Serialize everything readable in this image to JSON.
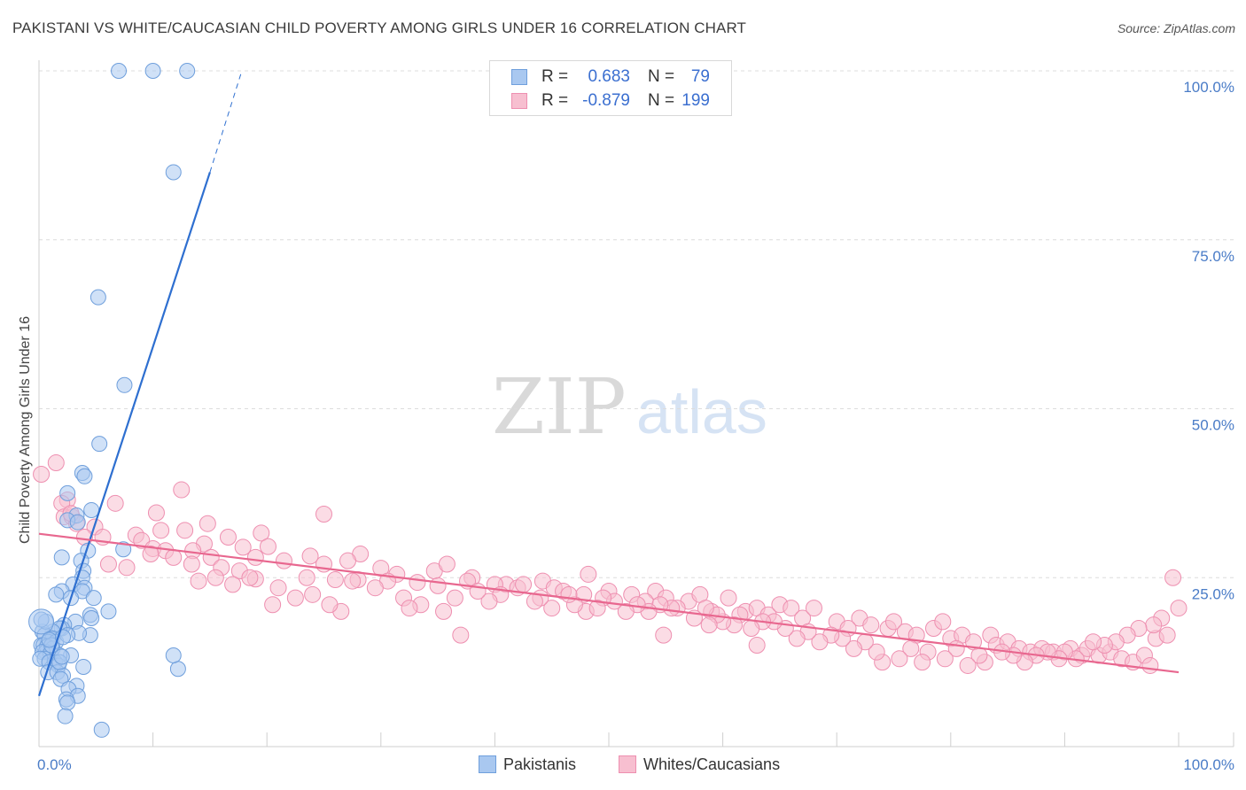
{
  "title": "PAKISTANI VS WHITE/CAUCASIAN CHILD POVERTY AMONG GIRLS UNDER 16 CORRELATION CHART",
  "source": "Source: ZipAtlas.com",
  "watermark": {
    "zip": "ZIP",
    "atlas": "atlas"
  },
  "colors": {
    "pakistani_fill": "#a9c8f0",
    "pakistani_stroke": "#6f9fdc",
    "pakistani_line": "#2e6fd0",
    "white_fill": "#f7bfd0",
    "white_stroke": "#ee8fb0",
    "white_line": "#e8678f",
    "tick_text": "#4a7cc7",
    "grid": "#dcdcdc"
  },
  "legend_top": {
    "rows": [
      {
        "r_label": "R =",
        "r_value": "0.683",
        "n_label": "N =",
        "n_value": "79"
      },
      {
        "r_label": "R =",
        "r_value": "-0.879",
        "n_label": "N =",
        "n_value": "199"
      }
    ]
  },
  "legend_bottom": [
    "Pakistanis",
    "Whites/Caucasians"
  ],
  "chart_data": {
    "type": "scatter",
    "title": "PAKISTANI VS WHITE/CAUCASIAN CHILD POVERTY AMONG GIRLS UNDER 16 CORRELATION CHART",
    "xlabel": "",
    "ylabel": "Child Poverty Among Girls Under 16",
    "xlim": [
      0,
      100
    ],
    "ylim": [
      0,
      100
    ],
    "x_tick_labels": [
      {
        "value": 0,
        "label": "0.0%"
      },
      {
        "value": 100,
        "label": "100.0%"
      }
    ],
    "y_tick_labels": [
      {
        "value": 25,
        "label": "25.0%"
      },
      {
        "value": 50,
        "label": "50.0%"
      },
      {
        "value": 75,
        "label": "75.0%"
      },
      {
        "value": 100,
        "label": "100.0%"
      }
    ],
    "grid": true,
    "legend_placement": "top-center",
    "series": [
      {
        "name": "Pakistanis",
        "trend": {
          "x0": 0.0,
          "y0": 7.5,
          "x1": 15.0,
          "y1": 85.0,
          "dashed_to_x": 17.8,
          "dashed_to_y": 100.0
        },
        "points": [
          [
            7.0,
            100
          ],
          [
            10.0,
            100
          ],
          [
            13.0,
            100
          ],
          [
            11.8,
            85
          ],
          [
            5.2,
            66.5
          ],
          [
            7.5,
            53.5
          ],
          [
            5.3,
            44.8
          ],
          [
            3.8,
            40.5
          ],
          [
            4.0,
            40
          ],
          [
            2.5,
            37.5
          ],
          [
            4.6,
            35
          ],
          [
            3.3,
            34.2
          ],
          [
            2.5,
            33.5
          ],
          [
            3.4,
            33.2
          ],
          [
            7.4,
            29.2
          ],
          [
            4.3,
            29
          ],
          [
            2.0,
            28
          ],
          [
            3.7,
            27.5
          ],
          [
            3.9,
            26
          ],
          [
            3.8,
            25
          ],
          [
            3.0,
            24
          ],
          [
            4.0,
            23.5
          ],
          [
            3.8,
            23
          ],
          [
            2.0,
            23
          ],
          [
            1.5,
            22.5
          ],
          [
            2.8,
            22
          ],
          [
            4.8,
            22
          ],
          [
            6.1,
            20
          ],
          [
            4.5,
            19.5
          ],
          [
            4.6,
            19
          ],
          [
            3.2,
            18.5
          ],
          [
            2.2,
            18
          ],
          [
            2.0,
            17.5
          ],
          [
            1.8,
            17.5
          ],
          [
            1.2,
            17
          ],
          [
            0.3,
            17
          ],
          [
            0.5,
            16.5
          ],
          [
            1.0,
            16
          ],
          [
            1.2,
            16
          ],
          [
            0.8,
            15.5
          ],
          [
            1.5,
            15.5
          ],
          [
            0.2,
            15
          ],
          [
            0.4,
            15
          ],
          [
            0.7,
            14.8
          ],
          [
            1.2,
            14.5
          ],
          [
            0.6,
            14
          ],
          [
            0.3,
            14
          ],
          [
            1.0,
            13.8
          ],
          [
            2.8,
            13.5
          ],
          [
            1.8,
            13.5
          ],
          [
            0.5,
            13
          ],
          [
            0.1,
            13
          ],
          [
            1.4,
            12.5
          ],
          [
            0.9,
            12.5
          ],
          [
            1.7,
            12
          ],
          [
            3.9,
            11.8
          ],
          [
            12.2,
            11.5
          ],
          [
            0.8,
            11
          ],
          [
            1.6,
            11
          ],
          [
            2.1,
            10.5
          ],
          [
            1.9,
            10
          ],
          [
            3.3,
            9
          ],
          [
            2.6,
            8.5
          ],
          [
            3.4,
            7.5
          ],
          [
            2.4,
            7
          ],
          [
            2.5,
            6.5
          ],
          [
            2.3,
            4.5
          ],
          [
            5.5,
            2.5
          ],
          [
            4.5,
            16.5
          ],
          [
            3.5,
            16.8
          ],
          [
            2.5,
            16.5
          ],
          [
            0.6,
            18.5
          ],
          [
            0.2,
            18.8
          ],
          [
            1.8,
            12.5
          ],
          [
            2.0,
            13.3
          ],
          [
            1.1,
            15
          ],
          [
            0.9,
            15.8
          ],
          [
            2.1,
            16.2
          ],
          [
            11.8,
            13.5
          ]
        ]
      },
      {
        "name": "Whites/Caucasians",
        "trend": {
          "x0": 0.0,
          "y0": 31.5,
          "x1": 100.0,
          "y1": 11.0
        },
        "points": [
          [
            1.5,
            42
          ],
          [
            0.2,
            40.3
          ],
          [
            12.5,
            38
          ],
          [
            2.5,
            36.5
          ],
          [
            2.0,
            36
          ],
          [
            6.7,
            36
          ],
          [
            25.0,
            34.4
          ],
          [
            10.3,
            34.6
          ],
          [
            2.2,
            34
          ],
          [
            2.9,
            34
          ],
          [
            14.8,
            33
          ],
          [
            3.3,
            33
          ],
          [
            4.9,
            32.5
          ],
          [
            10.7,
            32
          ],
          [
            12.8,
            32
          ],
          [
            19.5,
            31.6
          ],
          [
            8.5,
            31.3
          ],
          [
            4.0,
            31
          ],
          [
            5.6,
            31
          ],
          [
            9.0,
            30.5
          ],
          [
            16.6,
            31
          ],
          [
            17.9,
            29.5
          ],
          [
            14.5,
            30
          ],
          [
            20.1,
            29.6
          ],
          [
            10.0,
            29.3
          ],
          [
            11.1,
            29
          ],
          [
            13.5,
            29
          ],
          [
            9.8,
            28.5
          ],
          [
            28.2,
            28.5
          ],
          [
            23.8,
            28.2
          ],
          [
            11.8,
            28
          ],
          [
            15.1,
            28
          ],
          [
            19.0,
            28
          ],
          [
            21.5,
            27.5
          ],
          [
            6.1,
            27
          ],
          [
            27.1,
            27.5
          ],
          [
            13.4,
            27
          ],
          [
            25.0,
            27
          ],
          [
            16.0,
            26.5
          ],
          [
            30.0,
            26.4
          ],
          [
            17.6,
            26
          ],
          [
            34.7,
            26
          ],
          [
            35.8,
            27
          ],
          [
            31.4,
            25.5
          ],
          [
            7.7,
            26.5
          ],
          [
            23.5,
            25
          ],
          [
            26.0,
            24.7
          ],
          [
            19.0,
            24.8
          ],
          [
            41.0,
            24
          ],
          [
            30.6,
            24.5
          ],
          [
            28.0,
            24.7
          ],
          [
            33.2,
            24.3
          ],
          [
            35.0,
            23.8
          ],
          [
            38.0,
            25
          ],
          [
            40.0,
            24
          ],
          [
            37.6,
            24.5
          ],
          [
            42.0,
            23.5
          ],
          [
            44.2,
            24.5
          ],
          [
            45.2,
            23.5
          ],
          [
            48.2,
            25.5
          ],
          [
            46.0,
            23.0
          ],
          [
            50.0,
            23.0
          ],
          [
            47.8,
            22.5
          ],
          [
            52.0,
            22.5
          ],
          [
            54.1,
            23.0
          ],
          [
            53.2,
            21.5
          ],
          [
            55.0,
            22.0
          ],
          [
            57.0,
            21.5
          ],
          [
            58.0,
            22.5
          ],
          [
            60.5,
            22.0
          ],
          [
            56.0,
            20.5
          ],
          [
            59.0,
            20.0
          ],
          [
            62.0,
            20.0
          ],
          [
            63.0,
            20.5
          ],
          [
            64.0,
            19.5
          ],
          [
            65.0,
            21.0
          ],
          [
            61.5,
            19.5
          ],
          [
            66.0,
            20.5
          ],
          [
            67.0,
            19.0
          ],
          [
            68.0,
            20.5
          ],
          [
            70.0,
            18.5
          ],
          [
            72.0,
            19.0
          ],
          [
            71.0,
            17.5
          ],
          [
            73.0,
            18.0
          ],
          [
            74.5,
            17.5
          ],
          [
            75.0,
            18.5
          ],
          [
            76.0,
            17.0
          ],
          [
            77.0,
            16.5
          ],
          [
            78.5,
            17.5
          ],
          [
            79.3,
            18.5
          ],
          [
            80.0,
            16.0
          ],
          [
            81.0,
            16.5
          ],
          [
            82.0,
            15.5
          ],
          [
            83.5,
            16.5
          ],
          [
            84.0,
            15.0
          ],
          [
            85.0,
            15.5
          ],
          [
            86.0,
            14.5
          ],
          [
            87.0,
            14.0
          ],
          [
            88.0,
            14.5
          ],
          [
            89.0,
            14.0
          ],
          [
            90.5,
            14.5
          ],
          [
            91.5,
            13.5
          ],
          [
            92.0,
            14.5
          ],
          [
            93.0,
            13.5
          ],
          [
            94.0,
            14.0
          ],
          [
            95.0,
            13.0
          ],
          [
            96.0,
            12.5
          ],
          [
            97.0,
            13.5
          ],
          [
            97.5,
            12.0
          ],
          [
            98.0,
            16.0
          ],
          [
            99.0,
            16.5
          ],
          [
            99.5,
            25.0
          ],
          [
            100.0,
            20.5
          ],
          [
            98.5,
            19.0
          ],
          [
            97.8,
            18.0
          ],
          [
            96.5,
            17.5
          ],
          [
            95.5,
            16.5
          ],
          [
            94.5,
            15.5
          ],
          [
            93.5,
            15.0
          ],
          [
            92.5,
            15.5
          ],
          [
            91.0,
            13.0
          ],
          [
            90.0,
            14.0
          ],
          [
            89.5,
            13.0
          ],
          [
            88.5,
            14.0
          ],
          [
            87.5,
            13.5
          ],
          [
            86.5,
            12.5
          ],
          [
            85.5,
            13.5
          ],
          [
            84.5,
            14.0
          ],
          [
            83.0,
            12.5
          ],
          [
            82.5,
            13.5
          ],
          [
            81.5,
            12.0
          ],
          [
            80.5,
            14.5
          ],
          [
            79.5,
            13.0
          ],
          [
            78.0,
            14.0
          ],
          [
            77.5,
            12.5
          ],
          [
            76.5,
            14.5
          ],
          [
            75.5,
            13.0
          ],
          [
            74.0,
            12.5
          ],
          [
            73.5,
            14.0
          ],
          [
            72.5,
            15.5
          ],
          [
            71.5,
            14.5
          ],
          [
            70.5,
            16.0
          ],
          [
            69.5,
            16.5
          ],
          [
            68.5,
            15.5
          ],
          [
            67.5,
            17.0
          ],
          [
            66.5,
            16.0
          ],
          [
            65.5,
            17.5
          ],
          [
            64.5,
            18.5
          ],
          [
            63.5,
            18.5
          ],
          [
            62.5,
            17.5
          ],
          [
            61.0,
            18.0
          ],
          [
            60.0,
            18.5
          ],
          [
            59.5,
            19.5
          ],
          [
            58.5,
            20.5
          ],
          [
            57.5,
            19.0
          ],
          [
            55.5,
            20.5
          ],
          [
            54.5,
            21.0
          ],
          [
            53.5,
            20.0
          ],
          [
            52.5,
            21.0
          ],
          [
            51.5,
            20.0
          ],
          [
            50.5,
            21.5
          ],
          [
            49.5,
            22.0
          ],
          [
            48.0,
            20.0
          ],
          [
            47.0,
            21.0
          ],
          [
            46.5,
            22.5
          ],
          [
            45.0,
            20.5
          ],
          [
            44.0,
            22.0
          ],
          [
            43.5,
            21.5
          ],
          [
            42.5,
            24.0
          ],
          [
            40.5,
            22.5
          ],
          [
            39.5,
            21.5
          ],
          [
            38.5,
            23.0
          ],
          [
            36.5,
            22.0
          ],
          [
            33.5,
            21.0
          ],
          [
            32.0,
            22.0
          ],
          [
            29.5,
            23.5
          ],
          [
            27.5,
            24.5
          ],
          [
            26.5,
            20.0
          ],
          [
            25.5,
            21.0
          ],
          [
            24.0,
            22.5
          ],
          [
            22.5,
            22.0
          ],
          [
            21.0,
            23.5
          ],
          [
            20.5,
            21.0
          ],
          [
            18.5,
            25.0
          ],
          [
            17.0,
            24.0
          ],
          [
            15.5,
            25.0
          ],
          [
            14.0,
            24.5
          ],
          [
            32.5,
            20.5
          ],
          [
            35.5,
            20.0
          ],
          [
            37.0,
            16.5
          ],
          [
            49.0,
            20.5
          ],
          [
            54.8,
            16.5
          ],
          [
            58.8,
            18.0
          ],
          [
            63.0,
            15.0
          ],
          [
            2.8,
            34.5
          ]
        ]
      }
    ]
  }
}
